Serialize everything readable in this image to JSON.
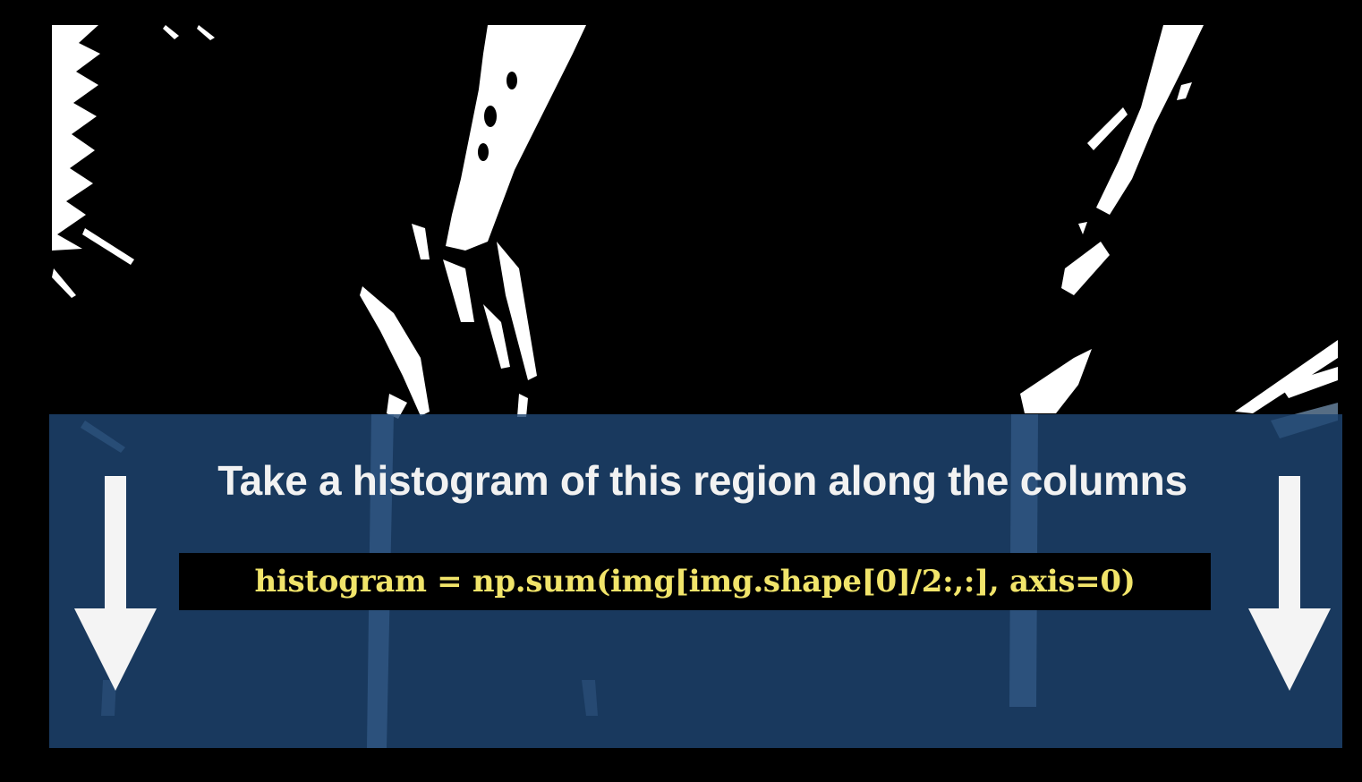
{
  "slide": {
    "caption": "Take a histogram of this region along the columns",
    "code": "histogram = np.sum(img[img.shape[0]/2:,:], axis=0)"
  },
  "colors": {
    "background": "#000000",
    "overlay": "#1e4673",
    "caption_text": "#f2f2f2",
    "code_text": "#f1e46a",
    "lane_pixels": "#ffffff"
  },
  "icons": {
    "left_arrow": "down-arrow",
    "right_arrow": "down-arrow"
  }
}
